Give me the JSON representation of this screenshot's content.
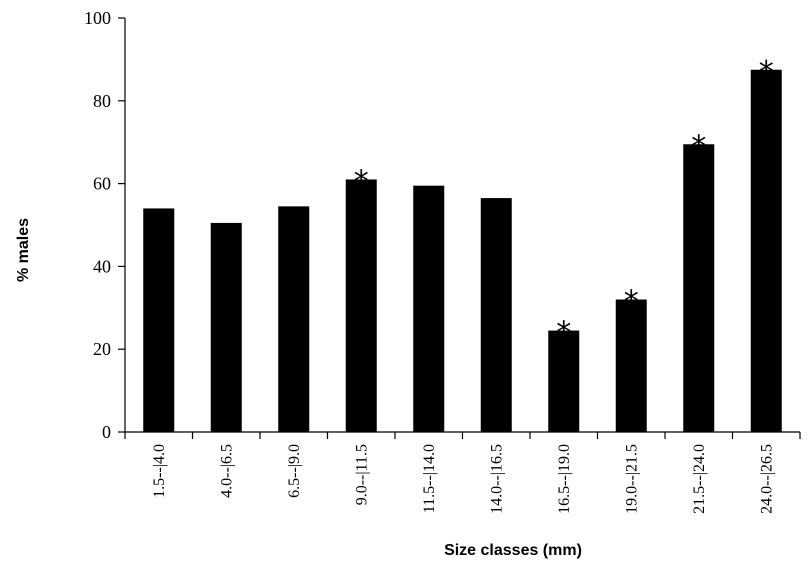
{
  "chart_data": {
    "type": "bar",
    "title": "",
    "xlabel": "Size classes (mm)",
    "ylabel": "% males",
    "ylim": [
      0,
      100
    ],
    "yticks": [
      0,
      20,
      40,
      60,
      80,
      100
    ],
    "grid": false,
    "legend": "none",
    "bar_color": "#000000",
    "significance_marker": "*",
    "categories": [
      "1.5--|4.0",
      "4.0--|6.5",
      "6.5--|9.0",
      "9.0--|11.5",
      "11.5--|14.0",
      "14.0--|16.5",
      "16.5--|19.0",
      "19.0--|21.5",
      "21.5--|24.0",
      "24.0--|26.5"
    ],
    "values": [
      54,
      50.5,
      54.5,
      61,
      59.5,
      56.5,
      24.5,
      32,
      69.5,
      87.5
    ],
    "significant": [
      false,
      false,
      false,
      true,
      false,
      false,
      true,
      true,
      true,
      true
    ]
  }
}
